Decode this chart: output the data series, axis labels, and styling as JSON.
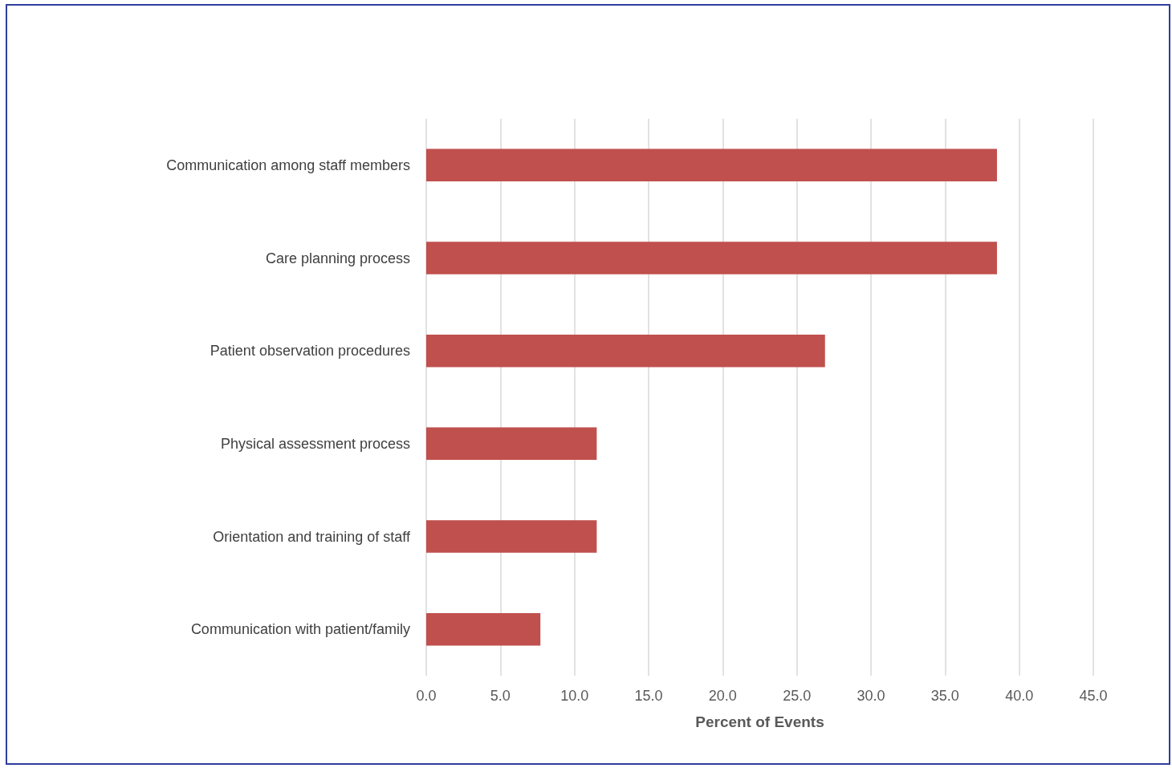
{
  "chart_data": {
    "type": "bar",
    "orientation": "horizontal",
    "categories": [
      "Communication among staff members",
      "Care planning process",
      "Patient observation procedures",
      "Physical assessment process",
      "Orientation and training of staff",
      "Communication with patient/family"
    ],
    "values": [
      38.5,
      38.5,
      26.9,
      11.5,
      11.5,
      7.7
    ],
    "color": "#c0504d",
    "xlabel": "Percent of Events",
    "xlim": [
      0,
      45
    ],
    "xticks": [
      {
        "value": 0,
        "label": "0.0"
      },
      {
        "value": 5,
        "label": "5.0"
      },
      {
        "value": 10,
        "label": "10.0"
      },
      {
        "value": 15,
        "label": "15.0"
      },
      {
        "value": 20,
        "label": "20.0"
      },
      {
        "value": 25,
        "label": "25.0"
      },
      {
        "value": 30,
        "label": "30.0"
      },
      {
        "value": 35,
        "label": "35.0"
      },
      {
        "value": 40,
        "label": "40.0"
      },
      {
        "value": 45,
        "label": "45.0"
      }
    ],
    "grid": "x"
  }
}
